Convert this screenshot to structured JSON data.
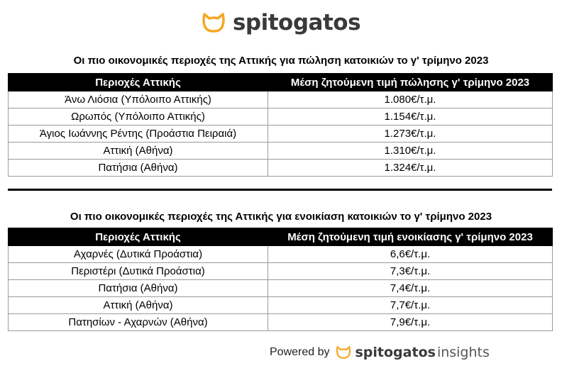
{
  "brand": {
    "name": "spitogatos",
    "accent_color": "#f7a823"
  },
  "sale": {
    "title": "Οι πιο οικονομικές περιοχές της Αττικής για πώληση κατοικιών το γ' τρίμηνο 2023",
    "headers": [
      "Περιοχές Αττικής",
      "Μέση ζητούμενη τιμή πώλησης γ' τρίμηνο 2023"
    ],
    "rows": [
      [
        "Άνω Λιόσια (Υπόλοιπο Αττικής)",
        "1.080€/τ.μ."
      ],
      [
        "Ωρωπός (Υπόλοιπο Αττικής)",
        "1.154€/τ.μ."
      ],
      [
        "Άγιος Ιωάννης Ρέντης (Προάστια Πειραιά)",
        "1.273€/τ.μ."
      ],
      [
        "Αττική (Αθήνα)",
        "1.310€/τ.μ."
      ],
      [
        "Πατήσια (Αθήνα)",
        "1.324€/τ.μ."
      ]
    ]
  },
  "rent": {
    "title": "Οι πιο οικονομικές περιοχές της Αττικής για ενοικίαση κατοικιών το γ' τρίμηνο 2023",
    "headers": [
      "Περιοχές Αττικής",
      "Μέση ζητούμενη τιμή ενοικίασης γ' τρίμηνο 2023"
    ],
    "rows": [
      [
        "Αχαρνές (Δυτικά Προάστια)",
        "6,6€/τ.μ."
      ],
      [
        "Περιστέρι (Δυτικά Προάστια)",
        "7,3€/τ.μ."
      ],
      [
        "Πατήσια (Αθήνα)",
        "7,4€/τ.μ."
      ],
      [
        "Αττική (Αθήνα)",
        "7,7€/τ.μ."
      ],
      [
        "Πατησίων - Αχαρνών (Αθήνα)",
        "7,9€/τ.μ."
      ]
    ]
  },
  "footer": {
    "powered_by": "Powered by",
    "brand": "spitogatos",
    "suffix": "insights",
    "icon": "cat-logo-icon"
  }
}
